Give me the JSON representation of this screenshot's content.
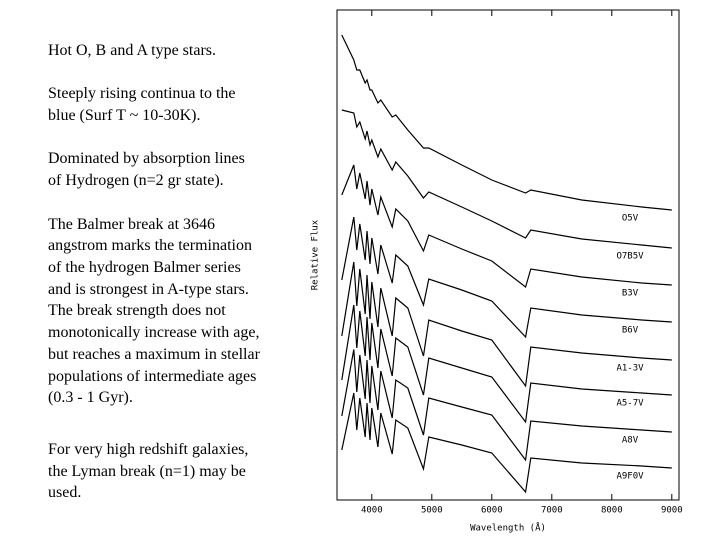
{
  "text": {
    "paragraphs": [
      [
        "Hot O, B and A type stars."
      ],
      [
        "Steeply rising continua to the",
        "blue (Surf T ~ 10-30K)."
      ],
      [
        "Dominated by absorption lines",
        "of Hydrogen (n=2 gr state)."
      ],
      [
        "The Balmer break at 3646",
        "angstrom marks the termination",
        "of the hydrogen Balmer series",
        "and is strongest in A-type stars.",
        "The break strength does not",
        "monotonically increase with age,",
        "but reaches a maximum in stellar",
        "populations of intermediate ages",
        "(0.3 - 1 Gyr)."
      ],
      [
        "For very high redshift galaxies,",
        "the Lyman break (n=1) may be",
        "used."
      ]
    ]
  },
  "chart_data": {
    "type": "line",
    "x_label": "Wavelength (Å)",
    "y_label": "Relative Flux",
    "x": [
      3500,
      3700,
      3750,
      3800,
      3890,
      3920,
      3970,
      4000,
      4102,
      4150,
      4340,
      4400,
      4600,
      4861,
      4950,
      5500,
      6000,
      6563,
      6650,
      7500,
      8500,
      9000
    ],
    "xlim": [
      3420,
      9120
    ],
    "xticks": [
      4000,
      5000,
      6000,
      7000,
      8000,
      9000
    ],
    "ylim": [
      0,
      49
    ],
    "series": [
      {
        "name": "O5V",
        "color": "#000000",
        "values": [
          46.5,
          44,
          43,
          43,
          41.7,
          42,
          41,
          41,
          39.7,
          40,
          38.3,
          38.5,
          37,
          35.2,
          35.2,
          33.5,
          32,
          30.7,
          31,
          30,
          29.3,
          29
        ]
      },
      {
        "name": "O7B5V",
        "color": "#000000",
        "values": [
          39,
          38.7,
          37.3,
          37.8,
          36.1,
          36.9,
          35.5,
          36,
          34.3,
          35.1,
          33,
          33.8,
          32.4,
          30.2,
          30.8,
          29.3,
          27.9,
          26.2,
          27,
          26.1,
          25.5,
          25.2
        ]
      },
      {
        "name": "B3V",
        "color": "#000000",
        "values": [
          30.5,
          33.5,
          31.1,
          32.7,
          30.1,
          31.9,
          29.5,
          31.1,
          28.5,
          30.3,
          27.3,
          29.1,
          27.9,
          24.9,
          26.5,
          25.1,
          23.9,
          21.3,
          23.1,
          22.3,
          21.7,
          21.5
        ]
      },
      {
        "name": "B6V",
        "color": "#000000",
        "values": [
          22,
          28.3,
          25,
          27.6,
          24,
          26.9,
          23.6,
          26.2,
          22.6,
          25.5,
          21.7,
          24.5,
          23.4,
          19.5,
          22.1,
          21,
          19.9,
          16.3,
          19.2,
          18.5,
          18,
          17.8
        ]
      },
      {
        "name": "A1-3V",
        "color": "#000000",
        "values": [
          16.4,
          23.8,
          19.4,
          23.1,
          18.6,
          22.5,
          18.1,
          21.8,
          17.3,
          21.2,
          16.4,
          20.2,
          19.2,
          14.4,
          18,
          16.9,
          16,
          11.4,
          15.3,
          14.7,
          14.2,
          14
        ]
      },
      {
        "name": "A5-7V",
        "color": "#000000",
        "values": [
          12,
          19.5,
          15.2,
          18.9,
          14.4,
          18.3,
          14,
          17.7,
          13.2,
          17.1,
          12.4,
          16.2,
          15.3,
          10.5,
          14.2,
          13.2,
          12.3,
          7.8,
          11.7,
          11.1,
          10.7,
          10.5
        ]
      },
      {
        "name": "A8V",
        "color": "#000000",
        "values": [
          8.4,
          15.05,
          10.8,
          14.5,
          10.1,
          14,
          9.7,
          13.4,
          9,
          12.9,
          8.2,
          12,
          11.2,
          6.5,
          10.2,
          9.3,
          8.5,
          4,
          7.9,
          7.4,
          7,
          6.8
        ]
      },
      {
        "name": "A9F0V",
        "color": "#000000",
        "values": [
          5,
          10.7,
          7,
          10.2,
          6.3,
          9.7,
          6,
          9.2,
          5.3,
          8.7,
          4.6,
          8,
          7.2,
          3.1,
          6.3,
          5.5,
          4.7,
          0.8,
          4.2,
          3.7,
          3.4,
          3.2
        ]
      }
    ]
  }
}
